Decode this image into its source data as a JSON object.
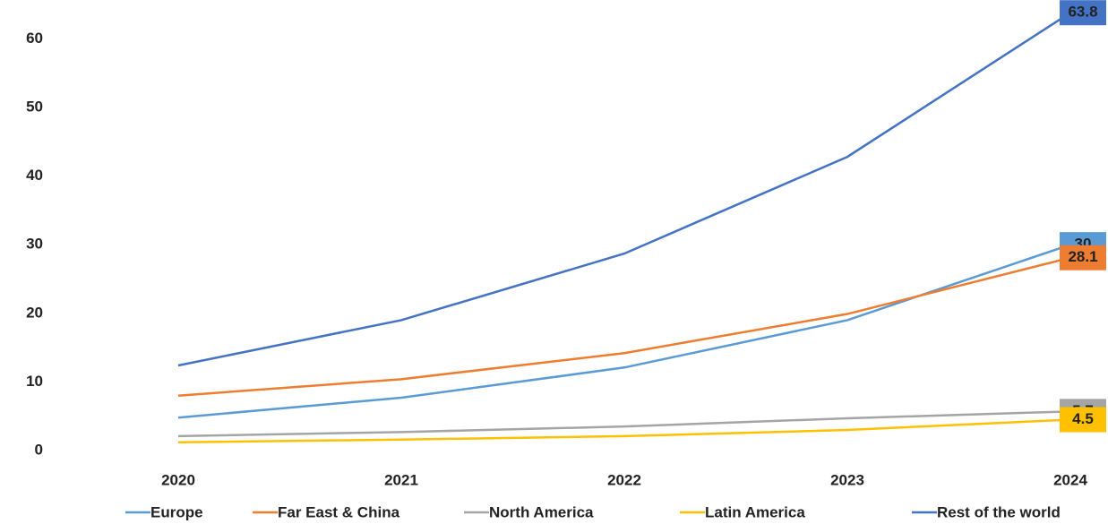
{
  "chart_data": {
    "type": "line",
    "categories": [
      "2020",
      "2021",
      "2022",
      "2023",
      "2024"
    ],
    "series": [
      {
        "name": "Europe",
        "color": "#5b9bd5",
        "values": [
          4.8,
          7.7,
          12.1,
          19.0,
          30.0
        ]
      },
      {
        "name": "Far East & China",
        "color": "#ed7d31",
        "values": [
          8.0,
          10.4,
          14.2,
          19.9,
          28.1
        ]
      },
      {
        "name": "North America",
        "color": "#a5a5a5",
        "values": [
          2.1,
          2.7,
          3.5,
          4.7,
          5.7
        ]
      },
      {
        "name": "Latin America",
        "color": "#ffc000",
        "values": [
          1.2,
          1.6,
          2.1,
          3.0,
          4.5
        ]
      },
      {
        "name": "Rest of the world",
        "color": "#4472c4",
        "values": [
          12.4,
          19.0,
          28.7,
          42.8,
          63.8
        ]
      }
    ],
    "ylim": [
      0,
      65
    ],
    "yticks": [
      0,
      10,
      20,
      30,
      40,
      50,
      60
    ],
    "grid": false,
    "legend": "bottom",
    "last_value_labels": true
  }
}
